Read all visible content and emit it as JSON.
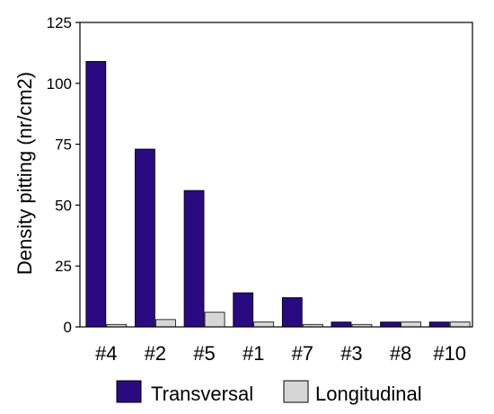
{
  "chart_data": {
    "type": "bar",
    "categories": [
      "#4",
      "#2",
      "#5",
      "#1",
      "#7",
      "#3",
      "#8",
      "#10"
    ],
    "series": [
      {
        "name": "Transversal",
        "color": "#2a0a80",
        "values": [
          109,
          73,
          56,
          14,
          12,
          2,
          2,
          2
        ]
      },
      {
        "name": "Longitudinal",
        "color": "#d6d6d6",
        "values": [
          1,
          3,
          6,
          2,
          1,
          1,
          2,
          2
        ]
      }
    ],
    "ylabel": "Density pitting (nr/cm2)",
    "xlabel": "",
    "ylim": [
      0,
      125
    ],
    "yticks": [
      0,
      25,
      50,
      75,
      100,
      125
    ],
    "grid": false,
    "legend_position": "bottom"
  }
}
